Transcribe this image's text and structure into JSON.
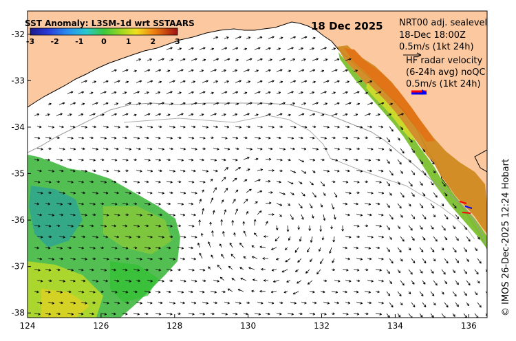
{
  "title": {
    "product": "SST Anomaly: L3SM-1d wrt SSTAARS",
    "date": "18 Dec 2025"
  },
  "colorbar": {
    "ticks": [
      "-3",
      "-2",
      "-1",
      "0",
      "1",
      "2",
      "3"
    ],
    "range": [
      -3,
      3
    ]
  },
  "legend": {
    "nrt_title": "NRT00 adj. sealevel",
    "nrt_time": "18-Dec 18:00Z",
    "nrt_scale": "0.5m/s (1kt 24h)",
    "radar_title": "HF radar velocity",
    "radar_avg": "(6-24h avg) noQC",
    "radar_scale": "0.5m/s (1kt 24h)"
  },
  "axes": {
    "x_ticks": [
      "124",
      "126",
      "128",
      "130",
      "132",
      "134",
      "136"
    ],
    "y_ticks": [
      "-32",
      "-33",
      "-34",
      "-35",
      "-36",
      "-37",
      "-38"
    ],
    "lon_range": [
      124,
      136.5
    ],
    "lat_range": [
      -31.5,
      -38.1
    ]
  },
  "credit": "© IMOS 26-Dec-2025 12:24 Hobart",
  "colors": {
    "land": "#FBC8A0",
    "ocean": "#FFFFFF",
    "arrow": "#000000",
    "radar_arrow_a": "#ff0000",
    "radar_arrow_b": "#0000ff",
    "bathymetry": "#9a9a9a"
  }
}
